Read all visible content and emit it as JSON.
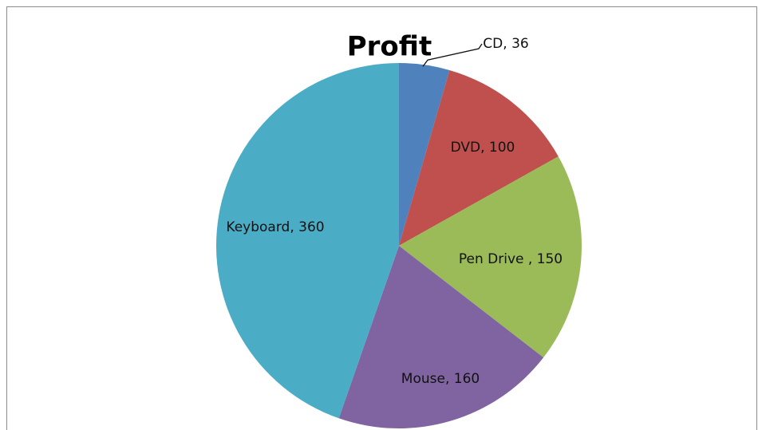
{
  "chart_data": {
    "type": "pie",
    "title": "Profit",
    "values": [
      36,
      100,
      150,
      160,
      360
    ],
    "value_labels": [
      "CD, 36",
      "DVD, 100",
      "Pen Drive , 150",
      "Mouse, 160",
      "Keyboard, 360"
    ],
    "colors": [
      "#4f81bd",
      "#c0504d",
      "#9bbb59",
      "#8064a2",
      "#4bacc6"
    ]
  }
}
